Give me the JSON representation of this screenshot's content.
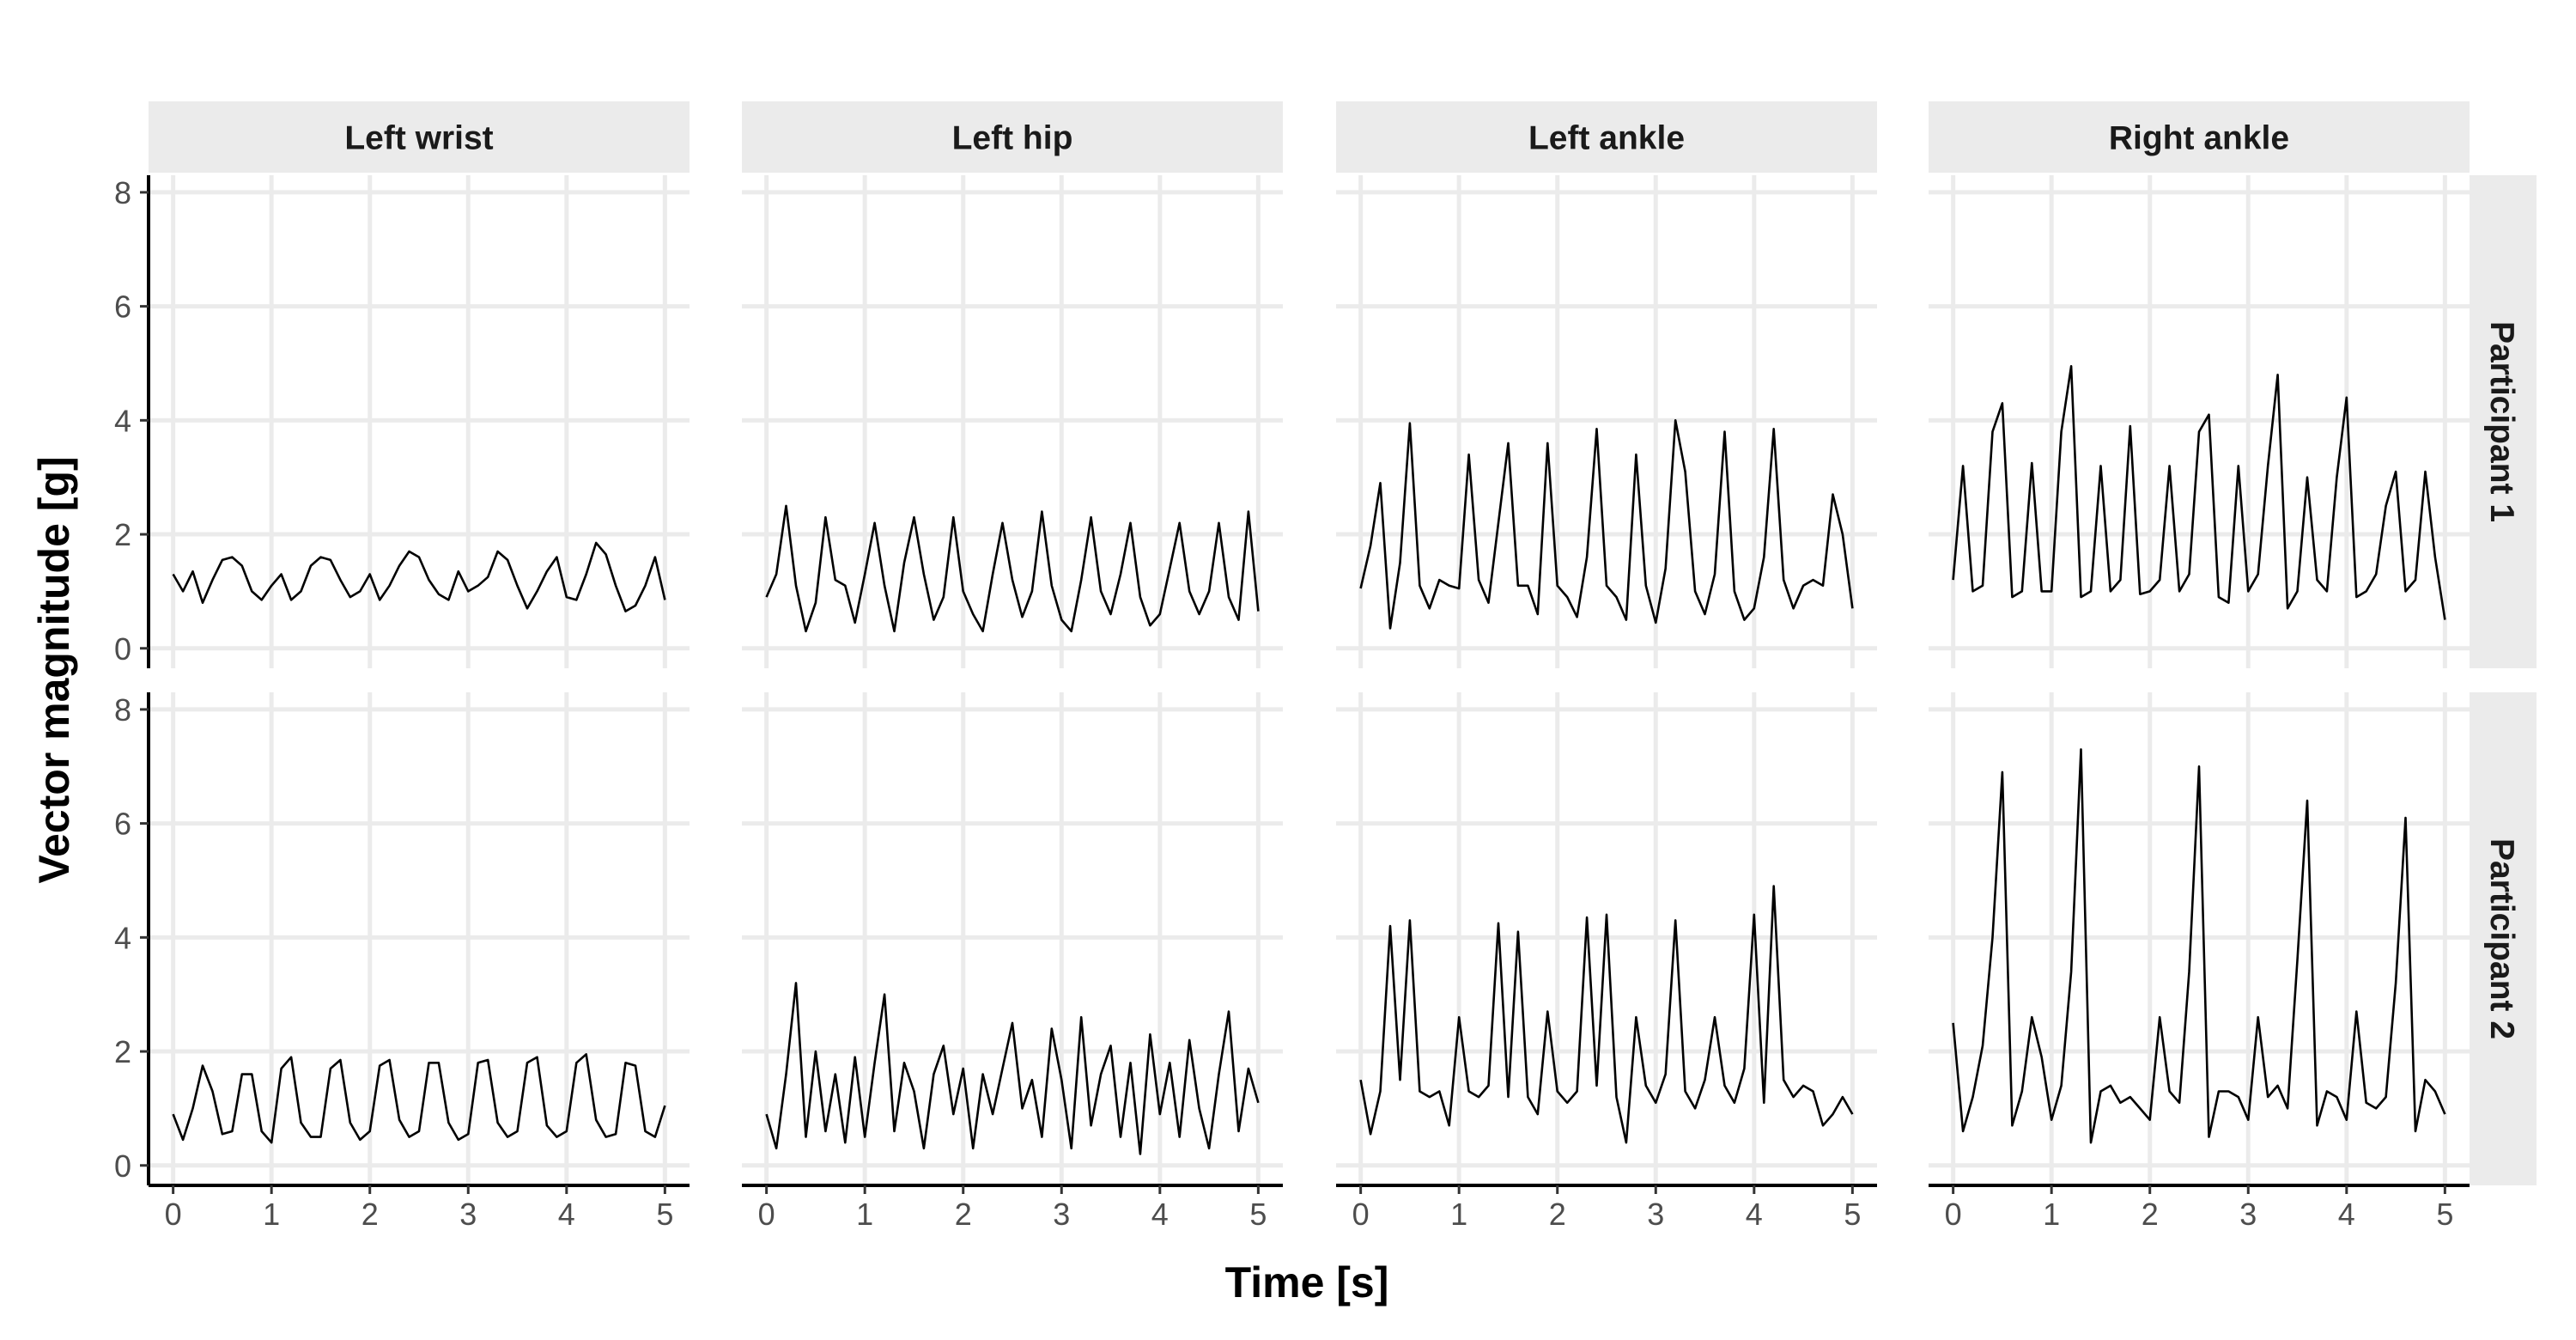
{
  "chart_data": {
    "type": "line",
    "xlabel": "Time [s]",
    "ylabel": "Vector magnitude [g]",
    "xlim": [
      -0.25,
      5.25
    ],
    "ylim": [
      -0.35,
      8.3
    ],
    "x_ticks": [
      0,
      1,
      2,
      3,
      4,
      5
    ],
    "y_ticks": [
      0,
      2,
      4,
      6,
      8
    ],
    "grid": true,
    "legend": "none",
    "line_color": "#000000",
    "columns": [
      "Left wrist",
      "Left hip",
      "Left ankle",
      "Right ankle"
    ],
    "rows": [
      "Participant 1",
      "Participant 2"
    ],
    "panels": [
      {
        "row": "Participant 1",
        "column": "Left wrist",
        "x": [
          0,
          0.1,
          0.2,
          0.3,
          0.4,
          0.5,
          0.6,
          0.7,
          0.8,
          0.9,
          1.0,
          1.1,
          1.2,
          1.3,
          1.4,
          1.5,
          1.6,
          1.7,
          1.8,
          1.9,
          2.0,
          2.1,
          2.2,
          2.3,
          2.4,
          2.5,
          2.6,
          2.7,
          2.8,
          2.9,
          3.0,
          3.1,
          3.2,
          3.3,
          3.4,
          3.5,
          3.6,
          3.7,
          3.8,
          3.9,
          4.0,
          4.1,
          4.2,
          4.3,
          4.4,
          4.5,
          4.6,
          4.7,
          4.8,
          4.9,
          5.0
        ],
        "y": [
          1.3,
          1.0,
          1.35,
          0.8,
          1.2,
          1.55,
          1.6,
          1.45,
          1.0,
          0.85,
          1.1,
          1.3,
          0.85,
          1.0,
          1.45,
          1.6,
          1.55,
          1.2,
          0.9,
          1.0,
          1.3,
          0.85,
          1.1,
          1.45,
          1.7,
          1.6,
          1.2,
          0.95,
          0.85,
          1.35,
          1.0,
          1.1,
          1.25,
          1.7,
          1.55,
          1.1,
          0.7,
          1.0,
          1.35,
          1.6,
          0.9,
          0.85,
          1.3,
          1.85,
          1.65,
          1.1,
          0.65,
          0.75,
          1.1,
          1.6,
          0.85
        ]
      },
      {
        "row": "Participant 1",
        "column": "Left hip",
        "x": [
          0,
          0.1,
          0.2,
          0.3,
          0.4,
          0.5,
          0.6,
          0.7,
          0.8,
          0.9,
          1.0,
          1.1,
          1.2,
          1.3,
          1.4,
          1.5,
          1.6,
          1.7,
          1.8,
          1.9,
          2.0,
          2.1,
          2.2,
          2.3,
          2.4,
          2.5,
          2.6,
          2.7,
          2.8,
          2.9,
          3.0,
          3.1,
          3.2,
          3.3,
          3.4,
          3.5,
          3.6,
          3.7,
          3.8,
          3.9,
          4.0,
          4.1,
          4.2,
          4.3,
          4.4,
          4.5,
          4.6,
          4.7,
          4.8,
          4.9,
          5.0
        ],
        "y": [
          0.9,
          1.3,
          2.5,
          1.1,
          0.3,
          0.8,
          2.3,
          1.2,
          1.1,
          0.45,
          1.3,
          2.2,
          1.1,
          0.3,
          1.5,
          2.3,
          1.3,
          0.5,
          0.9,
          2.3,
          1.0,
          0.6,
          0.3,
          1.3,
          2.2,
          1.2,
          0.55,
          1.0,
          2.4,
          1.1,
          0.5,
          0.3,
          1.2,
          2.3,
          1.0,
          0.6,
          1.3,
          2.2,
          0.9,
          0.4,
          0.6,
          1.4,
          2.2,
          1.0,
          0.6,
          1.0,
          2.2,
          0.9,
          0.5,
          2.4,
          0.65
        ]
      },
      {
        "row": "Participant 1",
        "column": "Left ankle",
        "x": [
          0,
          0.1,
          0.2,
          0.3,
          0.4,
          0.5,
          0.6,
          0.7,
          0.8,
          0.9,
          1.0,
          1.1,
          1.2,
          1.3,
          1.4,
          1.5,
          1.6,
          1.7,
          1.8,
          1.9,
          2.0,
          2.1,
          2.2,
          2.3,
          2.4,
          2.5,
          2.6,
          2.7,
          2.8,
          2.9,
          3.0,
          3.1,
          3.2,
          3.3,
          3.4,
          3.5,
          3.6,
          3.7,
          3.8,
          3.9,
          4.0,
          4.1,
          4.2,
          4.3,
          4.4,
          4.5,
          4.6,
          4.7,
          4.8,
          4.9,
          5.0
        ],
        "y": [
          1.05,
          1.8,
          2.9,
          0.35,
          1.5,
          3.95,
          1.1,
          0.7,
          1.2,
          1.1,
          1.05,
          3.4,
          1.2,
          0.8,
          2.2,
          3.6,
          1.1,
          1.1,
          0.6,
          3.6,
          1.1,
          0.9,
          0.55,
          1.6,
          3.85,
          1.1,
          0.9,
          0.5,
          3.4,
          1.1,
          0.45,
          1.4,
          4.0,
          3.1,
          1.0,
          0.6,
          1.3,
          3.8,
          1.0,
          0.5,
          0.7,
          1.6,
          3.85,
          1.2,
          0.7,
          1.1,
          1.2,
          1.1,
          2.7,
          2.0,
          0.7
        ]
      },
      {
        "row": "Participant 1",
        "column": "Right ankle",
        "x": [
          0,
          0.1,
          0.2,
          0.3,
          0.4,
          0.5,
          0.6,
          0.7,
          0.8,
          0.9,
          1.0,
          1.1,
          1.2,
          1.3,
          1.4,
          1.5,
          1.6,
          1.7,
          1.8,
          1.9,
          2.0,
          2.1,
          2.2,
          2.3,
          2.4,
          2.5,
          2.6,
          2.7,
          2.8,
          2.9,
          3.0,
          3.1,
          3.2,
          3.3,
          3.4,
          3.5,
          3.6,
          3.7,
          3.8,
          3.9,
          4.0,
          4.1,
          4.2,
          4.3,
          4.4,
          4.5,
          4.6,
          4.7,
          4.8,
          4.9,
          5.0
        ],
        "y": [
          1.2,
          3.2,
          1.0,
          1.1,
          3.8,
          4.3,
          0.9,
          1.0,
          3.25,
          1.0,
          1.0,
          3.8,
          4.95,
          0.9,
          1.0,
          3.2,
          1.0,
          1.2,
          3.9,
          0.95,
          1.0,
          1.2,
          3.2,
          1.0,
          1.3,
          3.8,
          4.1,
          0.9,
          0.8,
          3.2,
          1.0,
          1.3,
          3.2,
          4.8,
          0.7,
          1.0,
          3.0,
          1.2,
          1.0,
          3.0,
          4.4,
          0.9,
          1.0,
          1.3,
          2.5,
          3.1,
          1.0,
          1.2,
          3.1,
          1.6,
          0.5
        ]
      },
      {
        "row": "Participant 2",
        "column": "Left wrist",
        "x": [
          0,
          0.1,
          0.2,
          0.3,
          0.4,
          0.5,
          0.6,
          0.7,
          0.8,
          0.9,
          1.0,
          1.1,
          1.2,
          1.3,
          1.4,
          1.5,
          1.6,
          1.7,
          1.8,
          1.9,
          2.0,
          2.1,
          2.2,
          2.3,
          2.4,
          2.5,
          2.6,
          2.7,
          2.8,
          2.9,
          3.0,
          3.1,
          3.2,
          3.3,
          3.4,
          3.5,
          3.6,
          3.7,
          3.8,
          3.9,
          4.0,
          4.1,
          4.2,
          4.3,
          4.4,
          4.5,
          4.6,
          4.7,
          4.8,
          4.9,
          5.0
        ],
        "y": [
          0.9,
          0.45,
          1.0,
          1.75,
          1.3,
          0.55,
          0.6,
          1.6,
          1.6,
          0.6,
          0.4,
          1.7,
          1.9,
          0.75,
          0.5,
          0.5,
          1.7,
          1.85,
          0.75,
          0.45,
          0.6,
          1.75,
          1.85,
          0.8,
          0.5,
          0.6,
          1.8,
          1.8,
          0.75,
          0.45,
          0.55,
          1.8,
          1.85,
          0.75,
          0.5,
          0.6,
          1.8,
          1.9,
          0.7,
          0.5,
          0.6,
          1.8,
          1.95,
          0.8,
          0.5,
          0.55,
          1.8,
          1.75,
          0.6,
          0.5,
          1.05
        ]
      },
      {
        "row": "Participant 2",
        "column": "Left hip",
        "x": [
          0,
          0.1,
          0.2,
          0.3,
          0.4,
          0.5,
          0.6,
          0.7,
          0.8,
          0.9,
          1.0,
          1.1,
          1.2,
          1.3,
          1.4,
          1.5,
          1.6,
          1.7,
          1.8,
          1.9,
          2.0,
          2.1,
          2.2,
          2.3,
          2.4,
          2.5,
          2.6,
          2.7,
          2.8,
          2.9,
          3.0,
          3.1,
          3.2,
          3.3,
          3.4,
          3.5,
          3.6,
          3.7,
          3.8,
          3.9,
          4.0,
          4.1,
          4.2,
          4.3,
          4.4,
          4.5,
          4.6,
          4.7,
          4.8,
          4.9,
          5.0
        ],
        "y": [
          0.9,
          0.3,
          1.6,
          3.2,
          0.5,
          2.0,
          0.6,
          1.6,
          0.4,
          1.9,
          0.5,
          1.8,
          3.0,
          0.6,
          1.8,
          1.3,
          0.3,
          1.6,
          2.1,
          0.9,
          1.7,
          0.3,
          1.6,
          0.9,
          1.7,
          2.5,
          1.0,
          1.5,
          0.5,
          2.4,
          1.5,
          0.3,
          2.6,
          0.7,
          1.6,
          2.1,
          0.5,
          1.8,
          0.2,
          2.3,
          0.9,
          1.8,
          0.5,
          2.2,
          1.0,
          0.3,
          1.6,
          2.7,
          0.6,
          1.7,
          1.1
        ]
      },
      {
        "row": "Participant 2",
        "column": "Left ankle",
        "x": [
          0,
          0.1,
          0.2,
          0.3,
          0.4,
          0.5,
          0.6,
          0.7,
          0.8,
          0.9,
          1.0,
          1.1,
          1.2,
          1.3,
          1.4,
          1.5,
          1.6,
          1.7,
          1.8,
          1.9,
          2.0,
          2.1,
          2.2,
          2.3,
          2.4,
          2.5,
          2.6,
          2.7,
          2.8,
          2.9,
          3.0,
          3.1,
          3.2,
          3.3,
          3.4,
          3.5,
          3.6,
          3.7,
          3.8,
          3.9,
          4.0,
          4.1,
          4.2,
          4.3,
          4.4,
          4.5,
          4.6,
          4.7,
          4.8,
          4.9,
          5.0
        ],
        "y": [
          1.5,
          0.55,
          1.3,
          4.2,
          1.5,
          4.3,
          1.3,
          1.2,
          1.3,
          0.7,
          2.6,
          1.3,
          1.2,
          1.4,
          4.25,
          1.2,
          4.1,
          1.2,
          0.9,
          2.7,
          1.3,
          1.1,
          1.3,
          4.35,
          1.4,
          4.4,
          1.2,
          0.4,
          2.6,
          1.4,
          1.1,
          1.6,
          4.3,
          1.3,
          1.0,
          1.5,
          2.6,
          1.4,
          1.1,
          1.7,
          4.4,
          1.1,
          4.9,
          1.5,
          1.2,
          1.4,
          1.3,
          0.7,
          0.9,
          1.2,
          0.9
        ]
      },
      {
        "row": "Participant 2",
        "column": "Right ankle",
        "x": [
          0,
          0.1,
          0.2,
          0.3,
          0.4,
          0.5,
          0.6,
          0.7,
          0.8,
          0.9,
          1.0,
          1.1,
          1.2,
          1.3,
          1.4,
          1.5,
          1.6,
          1.7,
          1.8,
          1.9,
          2.0,
          2.1,
          2.2,
          2.3,
          2.4,
          2.5,
          2.6,
          2.7,
          2.8,
          2.9,
          3.0,
          3.1,
          3.2,
          3.3,
          3.4,
          3.5,
          3.6,
          3.7,
          3.8,
          3.9,
          4.0,
          4.1,
          4.2,
          4.3,
          4.4,
          4.5,
          4.6,
          4.7,
          4.8,
          4.9,
          5.0
        ],
        "y": [
          2.5,
          0.6,
          1.2,
          2.1,
          4.0,
          6.9,
          0.7,
          1.3,
          2.6,
          1.9,
          0.8,
          1.4,
          3.4,
          7.3,
          0.4,
          1.3,
          1.4,
          1.1,
          1.2,
          1.0,
          0.8,
          2.6,
          1.3,
          1.1,
          3.4,
          7.0,
          0.5,
          1.3,
          1.3,
          1.2,
          0.8,
          2.6,
          1.2,
          1.4,
          1.0,
          3.6,
          6.4,
          0.7,
          1.3,
          1.2,
          0.8,
          2.7,
          1.1,
          1.0,
          1.2,
          3.2,
          6.1,
          0.6,
          1.5,
          1.3,
          0.9
        ]
      }
    ]
  }
}
